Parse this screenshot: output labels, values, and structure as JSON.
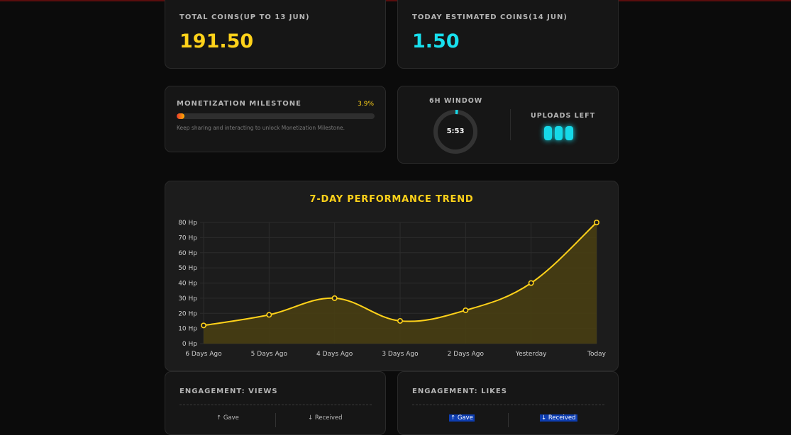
{
  "total_coins": {
    "label": "TOTAL COINS(UP TO 13 JUN)",
    "value": "191.50"
  },
  "today_coins": {
    "label": "TODAY ESTIMATED COINS(14 JUN)",
    "value": "1.50"
  },
  "milestone": {
    "label": "MONETIZATION MILESTONE",
    "percent_text": "3.9%",
    "percent": 3.9,
    "hint": "Keep sharing and interacting to unlock Monetization Milestone."
  },
  "window": {
    "label": "6H WINDOW",
    "time": "5:53",
    "progress": 0.02,
    "uploads_label": "UPLOADS LEFT",
    "uploads_left": 3
  },
  "chart_data": {
    "type": "line",
    "title": "7-DAY PERFORMANCE TREND",
    "categories": [
      "6 Days Ago",
      "5 Days Ago",
      "4 Days Ago",
      "3 Days Ago",
      "2 Days Ago",
      "Yesterday",
      "Today"
    ],
    "series": [
      {
        "values": [
          12,
          19,
          30,
          15,
          22,
          40,
          80
        ]
      }
    ],
    "ylim": [
      0,
      80
    ],
    "yticks": [
      "0 Hp",
      "10 Hp",
      "20 Hp",
      "30 Hp",
      "40 Hp",
      "50 Hp",
      "60 Hp",
      "70 Hp",
      "80 Hp"
    ],
    "grid": true,
    "colors": {
      "line": "#ffd21a",
      "fill": "#4a3f12",
      "grid": "#2c2c2c"
    }
  },
  "engagement_views": {
    "title": "ENGAGEMENT: VIEWS",
    "gave": "↑ Gave",
    "received": "↓ Received"
  },
  "engagement_likes": {
    "title": "ENGAGEMENT: LIKES",
    "gave": "↑ Gave",
    "received": "↓ Received"
  }
}
